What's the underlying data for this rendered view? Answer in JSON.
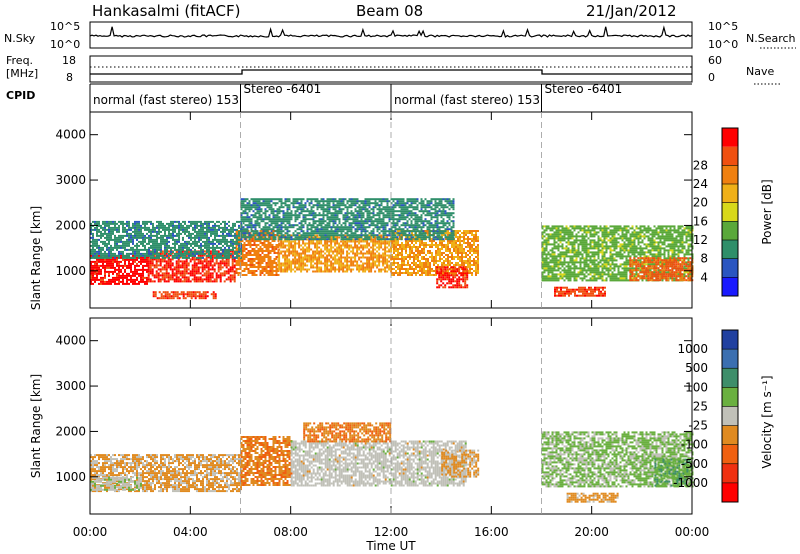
{
  "header": {
    "station": "Hankasalmi (fitACF)",
    "beam": "Beam 08",
    "date": "21/Jan/2012"
  },
  "noise_panel": {
    "left_label": "N.Sky",
    "right_label": "N.Search",
    "tick_top": "10^5",
    "tick_bottom": "10^0"
  },
  "freq_panel": {
    "left_label_1": "Freq.",
    "left_label_2": "[MHz]",
    "left_tick_top": "18",
    "left_tick_bottom": "8",
    "right_tick_top": "60",
    "right_tick_bottom": "0",
    "right_label": "Nave",
    "cpid_label": "CPID"
  },
  "cpid_segments": [
    {
      "label": "normal (fast stereo) 153",
      "start_hour": 0
    },
    {
      "label": "Stereo -6401",
      "start_hour": 6
    },
    {
      "label": "normal (fast stereo) 153",
      "start_hour": 12
    },
    {
      "label": "Stereo -6401",
      "start_hour": 18
    }
  ],
  "axes": {
    "ylabel": "Slant Range [km]",
    "xlabel": "Time UT",
    "y_ticks": [
      "1000",
      "2000",
      "3000",
      "4000"
    ],
    "x_ticks": [
      "00:00",
      "04:00",
      "08:00",
      "12:00",
      "16:00",
      "20:00",
      "00:00"
    ]
  },
  "colorbars": {
    "power": {
      "label": "Power [dB]",
      "ticks": [
        "4",
        "8",
        "12",
        "16",
        "20",
        "24",
        "28"
      ],
      "colors": [
        "#1a1aff",
        "#2a55c0",
        "#2f8f6a",
        "#5aa83a",
        "#d8d81a",
        "#f0b018",
        "#f08010",
        "#f05010",
        "#ff0000"
      ]
    },
    "velocity": {
      "label": "Velocity [m s⁻¹]",
      "ticks": [
        "1000",
        "500",
        "100",
        "25",
        "-25",
        "-100",
        "-500",
        "-1000"
      ],
      "colors": [
        "#2040a0",
        "#3b6fb0",
        "#3e8e6a",
        "#6ab040",
        "#c0c0b8",
        "#e08a20",
        "#f06010",
        "#f03010",
        "#ff0000"
      ]
    }
  },
  "chart_data": {
    "type": "heatmap",
    "title": "Hankasalmi (fitACF)  Beam 08  21/Jan/2012",
    "xlabel": "Time UT",
    "ylabel": "Slant Range [km]",
    "x_range_hours": [
      0,
      24
    ],
    "y_range_km": [
      180,
      4500
    ],
    "panels": [
      {
        "name": "Power",
        "units": "dB",
        "color_range": [
          0,
          30
        ],
        "regions": [
          {
            "t0": 0.0,
            "t1": 2.3,
            "r0": 700,
            "r1": 1350,
            "level": 28
          },
          {
            "t0": 2.3,
            "t1": 5.8,
            "r0": 750,
            "r1": 1450,
            "level": 27
          },
          {
            "t0": 5.8,
            "t1": 7.5,
            "r0": 900,
            "r1": 1900,
            "level": 22
          },
          {
            "t0": 7.5,
            "t1": 12.0,
            "r0": 1000,
            "r1": 1800,
            "level": 20
          },
          {
            "t0": 12.0,
            "t1": 15.5,
            "r0": 900,
            "r1": 1900,
            "level": 20
          },
          {
            "t0": 13.8,
            "t1": 15.0,
            "r0": 650,
            "r1": 1100,
            "level": 27
          },
          {
            "t0": 0.0,
            "t1": 6.0,
            "r0": 1300,
            "r1": 2100,
            "level": 8
          },
          {
            "t0": 6.0,
            "t1": 14.5,
            "r0": 1700,
            "r1": 2600,
            "level": 8
          },
          {
            "t0": 18.0,
            "t1": 24.0,
            "r0": 800,
            "r1": 2000,
            "level": 12
          },
          {
            "t0": 21.5,
            "t1": 24.0,
            "r0": 800,
            "r1": 1300,
            "level": 24
          },
          {
            "t0": 2.5,
            "t1": 5.0,
            "r0": 400,
            "r1": 550,
            "level": 26
          },
          {
            "t0": 18.5,
            "t1": 20.5,
            "r0": 430,
            "r1": 650,
            "level": 26
          }
        ]
      },
      {
        "name": "Velocity",
        "units": "m s-1",
        "color_range": [
          -1000,
          1000
        ],
        "regions": [
          {
            "t0": 0.0,
            "t1": 6.0,
            "r0": 700,
            "r1": 1500,
            "level": -150
          },
          {
            "t0": 6.0,
            "t1": 8.0,
            "r0": 800,
            "r1": 1900,
            "level": -300
          },
          {
            "t0": 8.0,
            "t1": 15.0,
            "r0": 800,
            "r1": 1800,
            "level": 0
          },
          {
            "t0": 8.5,
            "t1": 12.0,
            "r0": 1800,
            "r1": 2200,
            "level": -300
          },
          {
            "t0": 14.0,
            "t1": 15.5,
            "r0": 1000,
            "r1": 1600,
            "level": -150
          },
          {
            "t0": 18.0,
            "t1": 24.0,
            "r0": 800,
            "r1": 2000,
            "level": 150
          },
          {
            "t0": 19.0,
            "t1": 21.0,
            "r0": 430,
            "r1": 650,
            "level": -200
          },
          {
            "t0": 0.0,
            "t1": 2.0,
            "r0": 700,
            "r1": 1000,
            "level": 60
          },
          {
            "t0": 22.5,
            "t1": 24.0,
            "r0": 800,
            "r1": 1400,
            "level": 300
          }
        ]
      }
    ]
  }
}
